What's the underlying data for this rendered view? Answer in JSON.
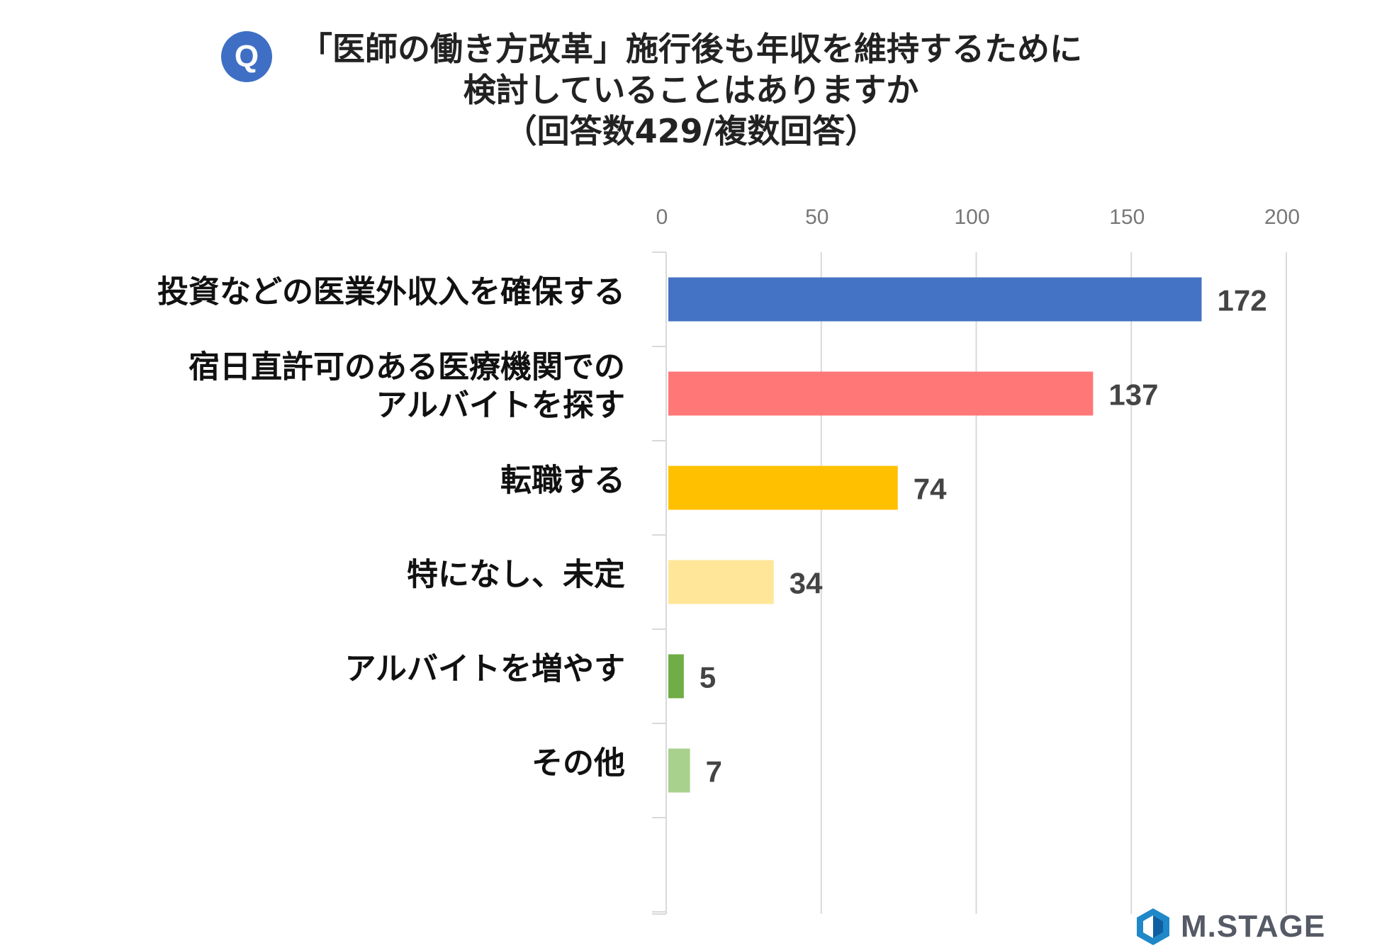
{
  "title": {
    "badge": "Q",
    "line1": "「医師の働き方改革」施行後も年収を維持するために",
    "line2": "検討していることはありますか",
    "line3": "（回答数429/複数回答）"
  },
  "logo": {
    "text": "M.STAGE",
    "icon": "hexagon-logo-icon"
  },
  "chart_data": {
    "type": "bar",
    "orientation": "horizontal",
    "categories": [
      [
        "投資などの医業外収入を確保する"
      ],
      [
        "宿日直許可のある医療機関での",
        "アルバイトを探す"
      ],
      [
        "転職する"
      ],
      [
        "特になし、未定"
      ],
      [
        "アルバイトを増やす"
      ],
      [
        "その他"
      ]
    ],
    "values": [
      172,
      137,
      74,
      34,
      5,
      7
    ],
    "colors": [
      "#4472c4",
      "#ff7777",
      "#ffc000",
      "#ffe699",
      "#70ad47",
      "#a9d18e"
    ],
    "xlim": [
      0,
      200
    ],
    "xticks": [
      0,
      50,
      100,
      150,
      200
    ],
    "axis_position": "top",
    "grid": true,
    "data_labels": true
  }
}
